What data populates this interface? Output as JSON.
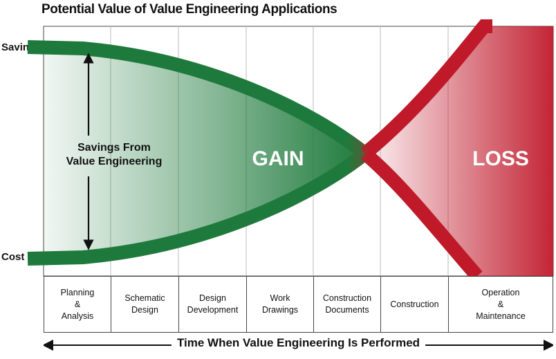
{
  "title": "Potential Value of Value Engineering Applications",
  "y_labels": {
    "top": "Savings",
    "bottom": "Cost"
  },
  "regions": {
    "savings_label": [
      "Savings From",
      "Value Engineering"
    ],
    "gain": "GAIN",
    "loss": "LOSS"
  },
  "phases": [
    "Planning\n&\nAnalysis",
    "Schematic\nDesign",
    "Design\nDevelopment",
    "Work\nDrawings",
    "Construction\nDocuments",
    "Construction",
    "Operation\n&\nMaintenance"
  ],
  "timeline_label": "Time When Value Engineering Is Performed",
  "colors": {
    "gain": "#1e7a3c",
    "loss": "#c0192a"
  }
}
